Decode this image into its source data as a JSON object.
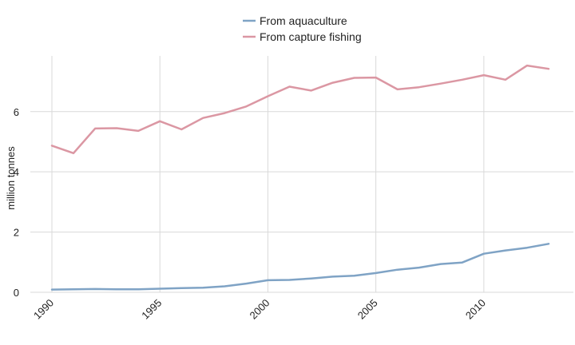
{
  "chart_data": {
    "type": "line",
    "title": "",
    "xlabel": "",
    "ylabel": "million tonnes",
    "x": [
      1990,
      1991,
      1992,
      1993,
      1994,
      1995,
      1996,
      1997,
      1998,
      1999,
      2000,
      2001,
      2002,
      2003,
      2004,
      2005,
      2006,
      2007,
      2008,
      2009,
      2010,
      2011,
      2012,
      2013
    ],
    "xlim": [
      1990,
      2013.9
    ],
    "ylim": [
      0,
      7.85
    ],
    "x_ticks": [
      1990,
      1995,
      2000,
      2005,
      2010
    ],
    "y_ticks": [
      0,
      2,
      4,
      6
    ],
    "x_tick_labels": [
      "1990",
      "1995",
      "2000",
      "2005",
      "2010"
    ],
    "y_tick_labels": [
      "0",
      "2",
      "4",
      "6"
    ],
    "grid": true,
    "legend_position": "top-center",
    "series": [
      {
        "name": "From aquaculture",
        "color": "#7fa3c5",
        "values": [
          0.09,
          0.1,
          0.11,
          0.1,
          0.1,
          0.12,
          0.14,
          0.15,
          0.2,
          0.29,
          0.4,
          0.41,
          0.46,
          0.52,
          0.55,
          0.64,
          0.75,
          0.82,
          0.94,
          0.99,
          1.28,
          1.39,
          1.48,
          1.61
        ]
      },
      {
        "name": "From capture fishing",
        "color": "#db97a3",
        "values": [
          4.87,
          4.62,
          5.44,
          5.45,
          5.36,
          5.68,
          5.41,
          5.79,
          5.95,
          6.17,
          6.51,
          6.83,
          6.7,
          6.96,
          7.12,
          7.13,
          6.74,
          6.81,
          6.93,
          7.06,
          7.21,
          7.06,
          7.53,
          7.42
        ]
      }
    ]
  }
}
